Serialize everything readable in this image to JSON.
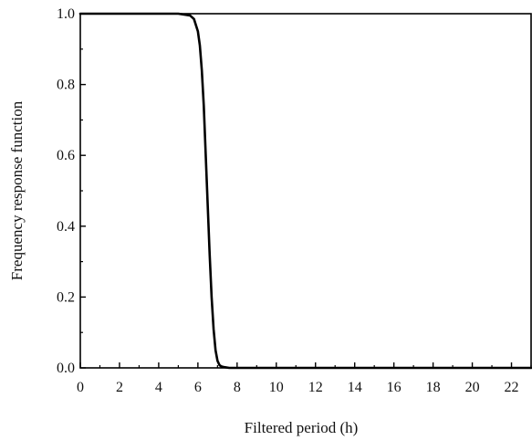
{
  "chart_data": {
    "type": "line",
    "title": "",
    "xlabel": "Filtered period (h)",
    "ylabel": "Frequency response function",
    "xlim": [
      0,
      23
    ],
    "ylim": [
      0,
      1.0
    ],
    "x_ticks": [
      0,
      2,
      4,
      6,
      8,
      10,
      12,
      14,
      16,
      18,
      20,
      22
    ],
    "x_tick_labels": [
      "0",
      "2",
      "4",
      "6",
      "8",
      "10",
      "12",
      "14",
      "16",
      "18",
      "20",
      "22"
    ],
    "y_ticks": [
      0,
      0.2,
      0.4,
      0.6,
      0.8,
      1.0
    ],
    "y_tick_labels": [
      "0.0",
      "0.2",
      "0.4",
      "0.6",
      "0.8",
      "1.0"
    ],
    "grid": false,
    "series": [
      {
        "color": "#000000",
        "x": [
          0,
          2,
          4,
          5,
          5.6,
          5.8,
          6.0,
          6.1,
          6.2,
          6.3,
          6.4,
          6.5,
          6.6,
          6.7,
          6.8,
          6.9,
          7.0,
          7.1,
          7.2,
          7.35,
          7.6,
          8.0,
          10,
          12,
          14,
          16,
          18,
          20,
          22,
          23
        ],
        "y": [
          1.0,
          1.0,
          1.0,
          1.0,
          0.995,
          0.985,
          0.95,
          0.91,
          0.84,
          0.74,
          0.6,
          0.46,
          0.32,
          0.2,
          0.11,
          0.05,
          0.02,
          0.008,
          0.004,
          0.002,
          0.0,
          0.0,
          0.0,
          0.0,
          0.0,
          0.0,
          0.0,
          0.0,
          0.0,
          0.0
        ]
      }
    ]
  }
}
